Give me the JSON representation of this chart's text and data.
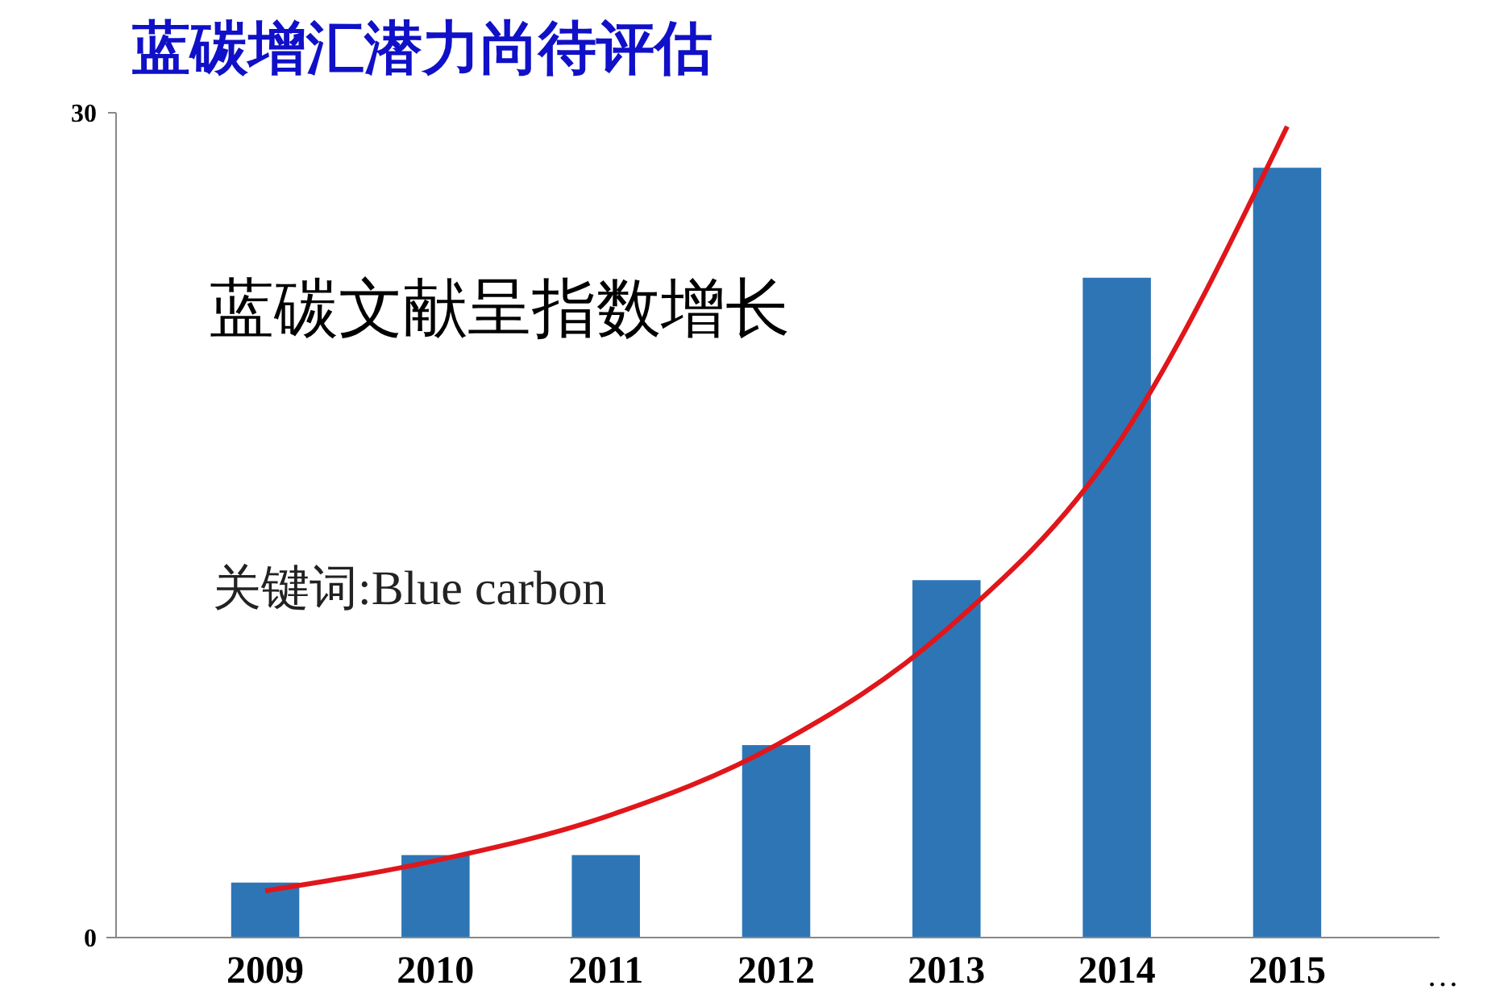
{
  "chart_data": {
    "type": "bar",
    "title": "蓝碳增汇潜力尚待评估",
    "categories": [
      "2009",
      "2010",
      "2011",
      "2012",
      "2013",
      "2014",
      "2015"
    ],
    "series": [
      {
        "color": "#2e75b6",
        "values": [
          2,
          3,
          3,
          7,
          13,
          24,
          28
        ]
      },
      {
        "type": "line",
        "color": "#e0161b",
        "values": [
          1.7,
          2.8,
          4.4,
          7,
          11.2,
          17.9,
          29.5
        ]
      }
    ],
    "ylim": [
      0,
      30
    ],
    "yticks": [
      0,
      30
    ],
    "grid": false,
    "marker": "none",
    "annotations": [
      "蓝碳文献呈指数增长",
      "关键词:Blue carbon",
      "…"
    ]
  }
}
